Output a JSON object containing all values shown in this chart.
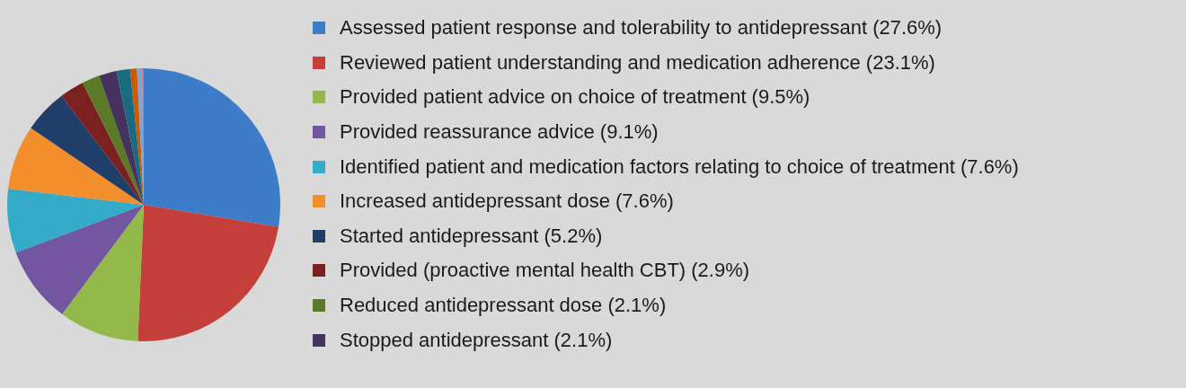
{
  "chart_data": {
    "type": "pie",
    "legend": "right",
    "categories": [
      "Assessed patient response and tolerability to antidepressant (27.6%)",
      "Reviewed patient understanding and medication adherence (23.1%)",
      "Provided patient advice on choice of treatment (9.5%)",
      "Provided reassurance advice (9.1%)",
      "Identified patient and medication factors relating to choice of treatment (7.6%)",
      "Increased antidepressant dose (7.6%)",
      "Started antidepressant (5.2%)",
      "Provided (proactive mental health CBT) (2.9%)",
      "Reduced antidepressant dose (2.1%)",
      "Stopped antidepressant (2.1%)",
      null,
      null,
      null,
      null
    ],
    "values": [
      27.6,
      23.1,
      9.5,
      9.1,
      7.6,
      7.6,
      5.2,
      2.9,
      2.1,
      2.1,
      1.6,
      0.8,
      0.6,
      0.2
    ],
    "colors": [
      "#3d7cc9",
      "#c43e3a",
      "#93b94a",
      "#7256a0",
      "#33abc9",
      "#f28e2b",
      "#1f3f6a",
      "#7a2120",
      "#5a7a28",
      "#46325f",
      "#1a6b80",
      "#cc5a00",
      "#7aa6dc",
      "#e07070"
    ]
  }
}
